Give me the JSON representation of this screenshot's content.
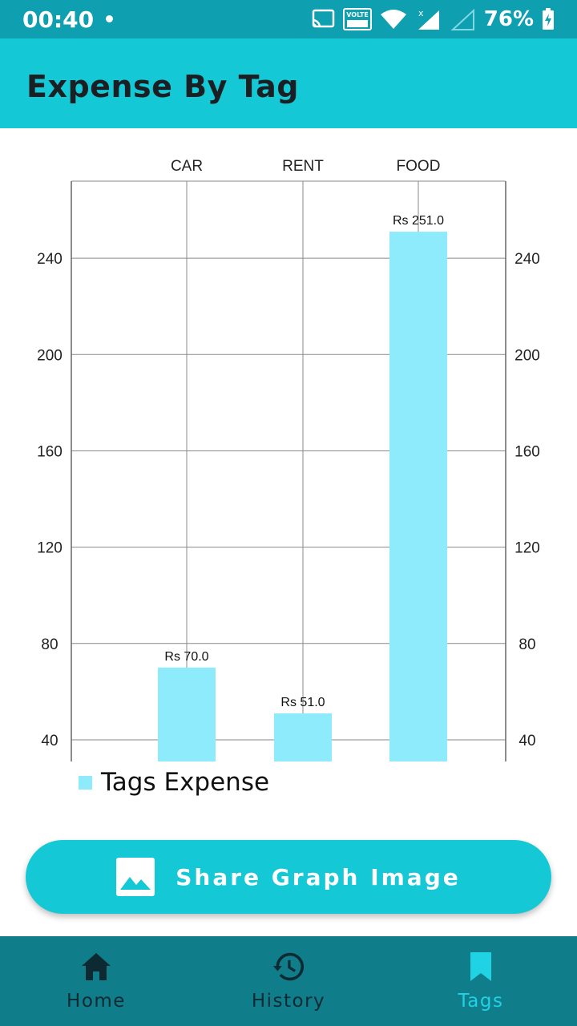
{
  "status_bar": {
    "time": "00:40",
    "volte": "VOLTE",
    "battery": "76%"
  },
  "app_bar": {
    "title": "Expense By Tag"
  },
  "chart_data": {
    "type": "bar",
    "categories": [
      "CAR",
      "RENT",
      "FOOD"
    ],
    "values": [
      70.0,
      51.0,
      251.0
    ],
    "value_labels": [
      "Rs 70.0",
      "Rs 51.0",
      "Rs 251.0"
    ],
    "series": [
      {
        "name": "Tags Expense",
        "values": [
          70.0,
          51.0,
          251.0
        ]
      }
    ],
    "yticks": [
      40,
      80,
      120,
      160,
      200,
      240
    ],
    "ylim": [
      31,
      272
    ],
    "grid": true,
    "legend_position": "bottom-left",
    "bar_color": "#8eebfb"
  },
  "legend": {
    "label": "Tags Expense"
  },
  "share_button": {
    "label": "Share Graph Image"
  },
  "nav": {
    "items": [
      {
        "label": "Home",
        "icon": "home-icon"
      },
      {
        "label": "History",
        "icon": "history-icon"
      },
      {
        "label": "Tags",
        "icon": "bookmark-icon"
      }
    ]
  },
  "colors": {
    "primary": "#14c8d6",
    "status_bar": "#0e9fb0",
    "nav_bg": "#0f7d8a",
    "nav_active": "#1fd3e4",
    "bar": "#8eebfb"
  }
}
